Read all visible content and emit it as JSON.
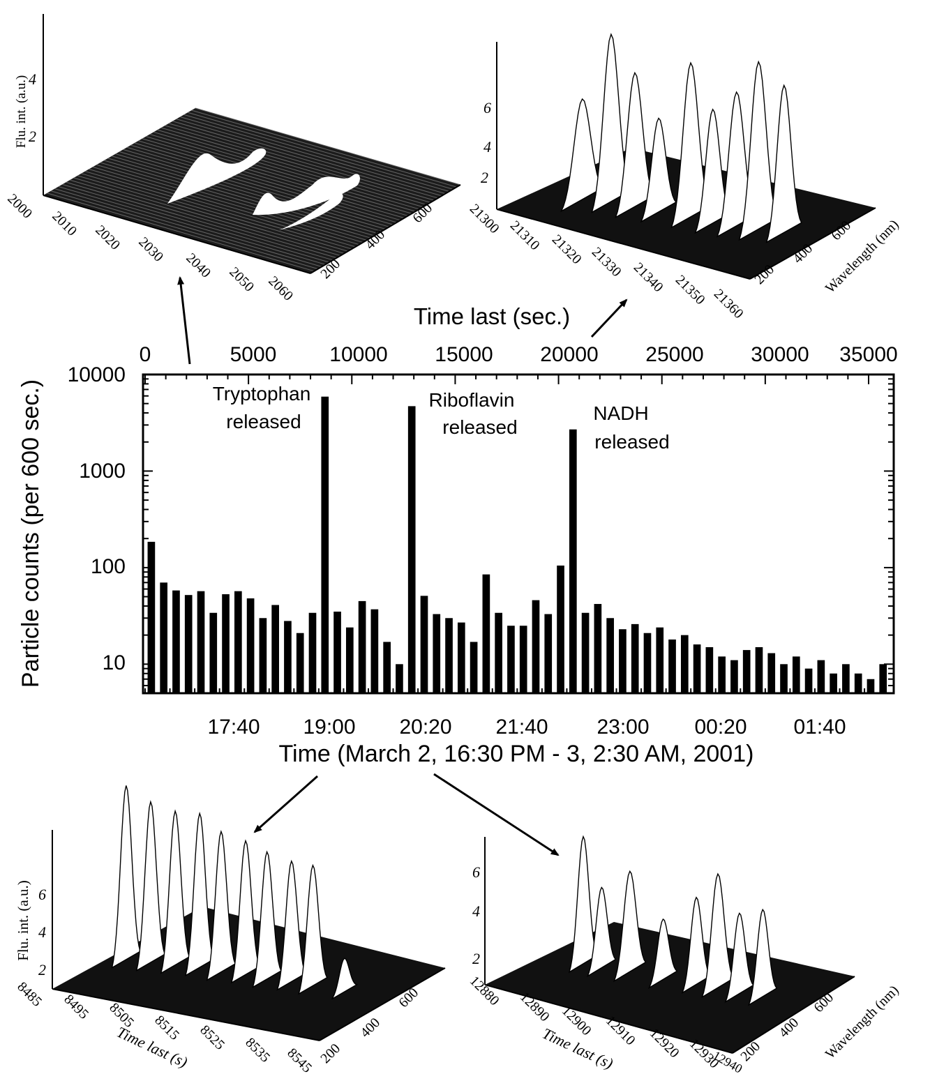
{
  "chart_data": [
    {
      "type": "bar",
      "id": "main",
      "ylabel": "Particle counts (per 600 sec.)",
      "xlabel": "Time (March 2, 16:30 PM - 3, 2:30 AM, 2001)",
      "x2label": "Time last (sec.)",
      "yscale": "log",
      "ylim": [
        5,
        10000
      ],
      "xlim_seconds": [
        0,
        35700
      ],
      "y_ticks": [
        "10",
        "100",
        "1000",
        "10000"
      ],
      "top_ticks": [
        "0",
        "5000",
        "10000",
        "15000",
        "20000",
        "25000",
        "30000",
        "35000"
      ],
      "bottom_ticks": [
        "17:40",
        "19:00",
        "20:20",
        "21:40",
        "23:00",
        "00:20",
        "01:40"
      ],
      "annotations": [
        {
          "line1": "Tryptophan",
          "line2": "released"
        },
        {
          "line1": "Riboflavin",
          "line2": "released"
        },
        {
          "line1": "NADH",
          "line2": "released"
        }
      ],
      "bin_seconds": 600,
      "values": [
        185,
        70,
        58,
        52,
        57,
        34,
        53,
        57,
        48,
        30,
        41,
        28,
        21,
        34,
        5900,
        35,
        24,
        45,
        37,
        17,
        10,
        4700,
        51,
        33,
        30,
        27,
        17,
        85,
        34,
        25,
        25,
        46,
        33,
        105,
        2700,
        34,
        42,
        30,
        23,
        26,
        21,
        24,
        18,
        20,
        16,
        15,
        12,
        11,
        14,
        15,
        13,
        10,
        12,
        9,
        11,
        8,
        10,
        8,
        7,
        10
      ]
    },
    {
      "type": "surface3d",
      "id": "tryptophan-inset",
      "zlabel": "Flu. int. (a.u.)",
      "z_ticks": [
        "2",
        "4"
      ],
      "x_ticks": [
        "2000",
        "2010",
        "2020",
        "2030",
        "2040",
        "2050",
        "2060"
      ],
      "y_ticks": [
        "200",
        "400",
        "600"
      ]
    },
    {
      "type": "surface3d",
      "id": "nadh-inset",
      "ylabel": "Wavelength (nm)",
      "z_ticks": [
        "2",
        "4",
        "6"
      ],
      "x_ticks": [
        "21300",
        "21310",
        "21320",
        "21330",
        "21340",
        "21350",
        "21360"
      ],
      "y_ticks": [
        "200",
        "400",
        "600"
      ]
    },
    {
      "type": "surface3d",
      "id": "early-inset",
      "zlabel": "Flu. int. (a.u.)",
      "xlabel": "Time last (s)",
      "z_ticks": [
        "2",
        "4",
        "6"
      ],
      "x_ticks": [
        "8485",
        "8495",
        "8505",
        "8515",
        "8525",
        "8535",
        "8545"
      ],
      "y_ticks": [
        "200",
        "400",
        "600"
      ]
    },
    {
      "type": "surface3d",
      "id": "riboflavin-inset",
      "xlabel": "Time last (s)",
      "ylabel": "Wavelength (nm)",
      "z_ticks": [
        "2",
        "4",
        "6"
      ],
      "x_ticks": [
        "12880",
        "12890",
        "12900",
        "12910",
        "12920",
        "12930",
        "12940"
      ],
      "y_ticks": [
        "200",
        "400",
        "600"
      ]
    }
  ]
}
